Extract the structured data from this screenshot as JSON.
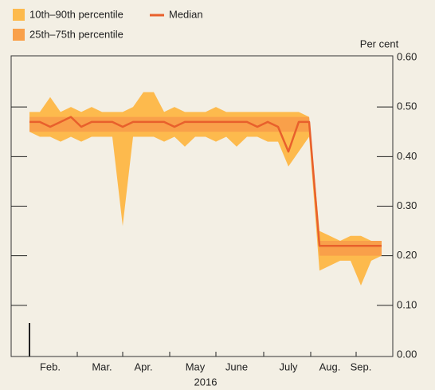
{
  "chart_data": {
    "type": "band-line",
    "y_label": "Per cent",
    "x_label": "2016",
    "categories": [
      null,
      null,
      "Feb.",
      null,
      null,
      null,
      null,
      "Mar.",
      null,
      null,
      null,
      "Apr.",
      null,
      null,
      null,
      null,
      "May",
      null,
      null,
      null,
      "June",
      null,
      null,
      null,
      null,
      "July",
      null,
      null,
      null,
      "Aug.",
      null,
      null,
      "Sep.",
      null,
      null
    ],
    "series": [
      {
        "name": "10th–90th percentile",
        "color": "#fdba4d",
        "high": [
          0.49,
          0.49,
          0.52,
          0.49,
          0.5,
          0.49,
          0.5,
          0.49,
          0.49,
          0.49,
          0.5,
          0.53,
          0.53,
          0.49,
          0.5,
          0.49,
          0.49,
          0.49,
          0.5,
          0.49,
          0.49,
          0.49,
          0.49,
          0.49,
          0.49,
          0.49,
          0.49,
          0.48,
          0.25,
          0.24,
          0.23,
          0.24,
          0.24,
          0.23,
          0.23
        ],
        "low": [
          0.45,
          0.44,
          0.44,
          0.43,
          0.44,
          0.43,
          0.44,
          0.44,
          0.44,
          0.26,
          0.44,
          0.44,
          0.44,
          0.43,
          0.44,
          0.42,
          0.44,
          0.44,
          0.43,
          0.44,
          0.42,
          0.44,
          0.44,
          0.43,
          0.43,
          0.38,
          0.41,
          0.44,
          0.17,
          0.18,
          0.19,
          0.19,
          0.14,
          0.19,
          0.2
        ]
      },
      {
        "name": "25th–75th percentile",
        "color": "#f9a04a",
        "high": [
          0.48,
          0.48,
          0.48,
          0.48,
          0.48,
          0.48,
          0.48,
          0.48,
          0.48,
          0.48,
          0.48,
          0.48,
          0.48,
          0.48,
          0.48,
          0.48,
          0.48,
          0.48,
          0.48,
          0.48,
          0.48,
          0.48,
          0.48,
          0.48,
          0.48,
          0.48,
          0.48,
          0.48,
          0.23,
          0.23,
          0.23,
          0.23,
          0.23,
          0.23,
          0.23
        ],
        "low": [
          0.45,
          0.45,
          0.45,
          0.45,
          0.45,
          0.45,
          0.45,
          0.45,
          0.45,
          0.45,
          0.45,
          0.45,
          0.45,
          0.45,
          0.45,
          0.45,
          0.45,
          0.45,
          0.45,
          0.45,
          0.45,
          0.45,
          0.45,
          0.45,
          0.45,
          0.45,
          0.45,
          0.45,
          0.2,
          0.2,
          0.2,
          0.2,
          0.2,
          0.2,
          0.2
        ]
      },
      {
        "name": "Median",
        "color": "#e8602c",
        "values": [
          0.47,
          0.47,
          0.46,
          0.47,
          0.48,
          0.46,
          0.47,
          0.47,
          0.47,
          0.46,
          0.47,
          0.47,
          0.47,
          0.47,
          0.46,
          0.47,
          0.47,
          0.47,
          0.47,
          0.47,
          0.47,
          0.47,
          0.46,
          0.47,
          0.46,
          0.41,
          0.47,
          0.47,
          0.22,
          0.22,
          0.22,
          0.22,
          0.22,
          0.22,
          0.22
        ]
      }
    ],
    "ylim": [
      0,
      0.6
    ],
    "yticks": [
      {
        "value": 0,
        "label": "0.00"
      },
      {
        "value": 0.1,
        "label": "0.10"
      },
      {
        "value": 0.2,
        "label": "0.20"
      },
      {
        "value": 0.3,
        "label": "0.30"
      },
      {
        "value": 0.4,
        "label": "0.40"
      },
      {
        "value": 0.5,
        "label": "0.50"
      },
      {
        "value": 0.6,
        "label": "0.60"
      }
    ]
  }
}
